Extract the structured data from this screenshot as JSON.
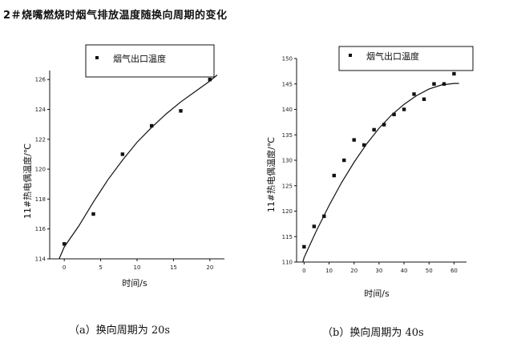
{
  "title": "2＃烧嘴燃烧时烟气排放温度随换向周期的变化",
  "chart_data": [
    {
      "type": "scatter",
      "caption": "（a）换向周期为 20s",
      "xlabel": "时间/s",
      "ylabel": "11#热电偶温度/℃",
      "xlim": [
        -2,
        22
      ],
      "ylim": [
        114,
        126.6
      ],
      "xticks": [
        0,
        5,
        10,
        15,
        20
      ],
      "yticks": [
        114,
        116,
        118,
        120,
        122,
        124,
        126
      ],
      "legend": {
        "label": "烟气出口温度",
        "placement": "top-center"
      },
      "series": [
        {
          "name": "烟气出口温度",
          "points": [
            [
              0,
              115
            ],
            [
              4,
              117
            ],
            [
              8,
              121
            ],
            [
              12,
              122.9
            ],
            [
              16,
              123.9
            ],
            [
              20,
              126
            ]
          ]
        }
      ],
      "fit_curve": {
        "x": [
          -0.7,
          0,
          2,
          4,
          6,
          8,
          10,
          12,
          14,
          16,
          18,
          20,
          21
        ],
        "y": [
          114,
          114.8,
          116.2,
          117.8,
          119.3,
          120.6,
          121.8,
          122.8,
          123.7,
          124.5,
          125.2,
          125.9,
          126.3
        ]
      }
    },
    {
      "type": "scatter",
      "caption": "（b）换向周期为 40s",
      "xlabel": "时间/s",
      "ylabel": "11#热电偶温度/℃",
      "xlim": [
        -3,
        65
      ],
      "ylim": [
        110,
        150
      ],
      "xticks": [
        0,
        10,
        20,
        30,
        40,
        50,
        60
      ],
      "yticks": [
        110,
        115,
        120,
        125,
        130,
        135,
        140,
        145,
        150
      ],
      "legend": {
        "label": "烟气出口温度",
        "placement": "top-right"
      },
      "series": [
        {
          "name": "烟气出口温度",
          "points": [
            [
              0,
              113
            ],
            [
              4,
              117
            ],
            [
              8,
              119
            ],
            [
              12,
              127
            ],
            [
              16,
              130
            ],
            [
              20,
              134
            ],
            [
              24,
              133
            ],
            [
              28,
              136
            ],
            [
              32,
              137
            ],
            [
              36,
              139
            ],
            [
              40,
              140
            ],
            [
              44,
              143
            ],
            [
              48,
              142
            ],
            [
              52,
              145
            ],
            [
              56,
              145
            ],
            [
              60,
              147
            ]
          ]
        }
      ],
      "fit_curve": {
        "x": [
          -0.5,
          0,
          5,
          10,
          15,
          20,
          25,
          30,
          35,
          40,
          45,
          50,
          55,
          60,
          62
        ],
        "y": [
          110,
          110.9,
          116.2,
          121.1,
          125.6,
          129.6,
          133.2,
          136.3,
          138.9,
          141,
          142.7,
          144,
          144.8,
          145.1,
          145.1
        ]
      }
    }
  ]
}
